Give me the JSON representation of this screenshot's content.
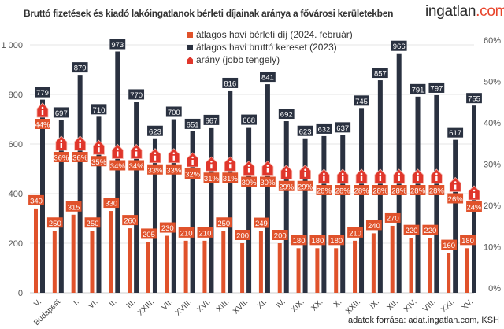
{
  "title": "Bruttó fizetések és kiadó lakóingatlanok bérleti díjainak aránya a fővárosi kerületekben",
  "logo": {
    "main": "ingatlan",
    "suffix": ".com"
  },
  "source": "adatok forrása: adat.ingatlan.com, KSH",
  "colors": {
    "rent": "#e0522b",
    "salary": "#2a3140",
    "ratio": "#e0362b",
    "grid": "#e6e6e6"
  },
  "chart_data": {
    "type": "bar",
    "title": "Bruttó fizetések és kiadó lakóingatlanok bérleti díjainak aránya a fővárosi kerületekben",
    "categories": [
      "V.",
      "Budapest",
      "I.",
      "VI.",
      "II.",
      "III.",
      "XXIII.",
      "VII.",
      "XVIII.",
      "XVI.",
      "XIII.",
      "XVII.",
      "XI.",
      "IV.",
      "XIX.",
      "XX.",
      "X.",
      "XXII.",
      "IX.",
      "XII.",
      "XIV.",
      "VIII.",
      "XXI.",
      "XV."
    ],
    "series": [
      {
        "name": "átlagos havi bérleti díj (2024. február)",
        "axis": "left",
        "values": [
          340,
          250,
          315,
          250,
          330,
          260,
          205,
          230,
          210,
          210,
          250,
          200,
          249,
          200,
          180,
          180,
          180,
          210,
          240,
          270,
          220,
          220,
          160,
          180
        ]
      },
      {
        "name": "átlagos havi bruttó kereset (2023)",
        "axis": "left",
        "values": [
          779,
          697,
          879,
          710,
          973,
          770,
          623,
          700,
          651,
          667,
          816,
          668,
          841,
          692,
          623,
          632,
          637,
          745,
          857,
          966,
          791,
          797,
          617,
          755
        ]
      },
      {
        "name": "arány (jobb tengely)",
        "axis": "right",
        "unit": "%",
        "values": [
          44,
          36,
          36,
          35,
          34,
          34,
          33,
          33,
          32,
          31,
          31,
          30,
          30,
          29,
          29,
          28,
          28,
          28,
          28,
          28,
          28,
          28,
          26,
          24
        ]
      }
    ],
    "left_axis": {
      "ylim": [
        0,
        1000
      ],
      "ticks": [
        "0",
        "200",
        "400",
        "600",
        "800",
        "1 000"
      ]
    },
    "right_axis": {
      "ylim": [
        0,
        60
      ],
      "ticks": [
        "0%",
        "10%",
        "20%",
        "30%",
        "40%",
        "50%",
        "60%"
      ]
    },
    "grid": true,
    "legend_position": "top-center"
  }
}
